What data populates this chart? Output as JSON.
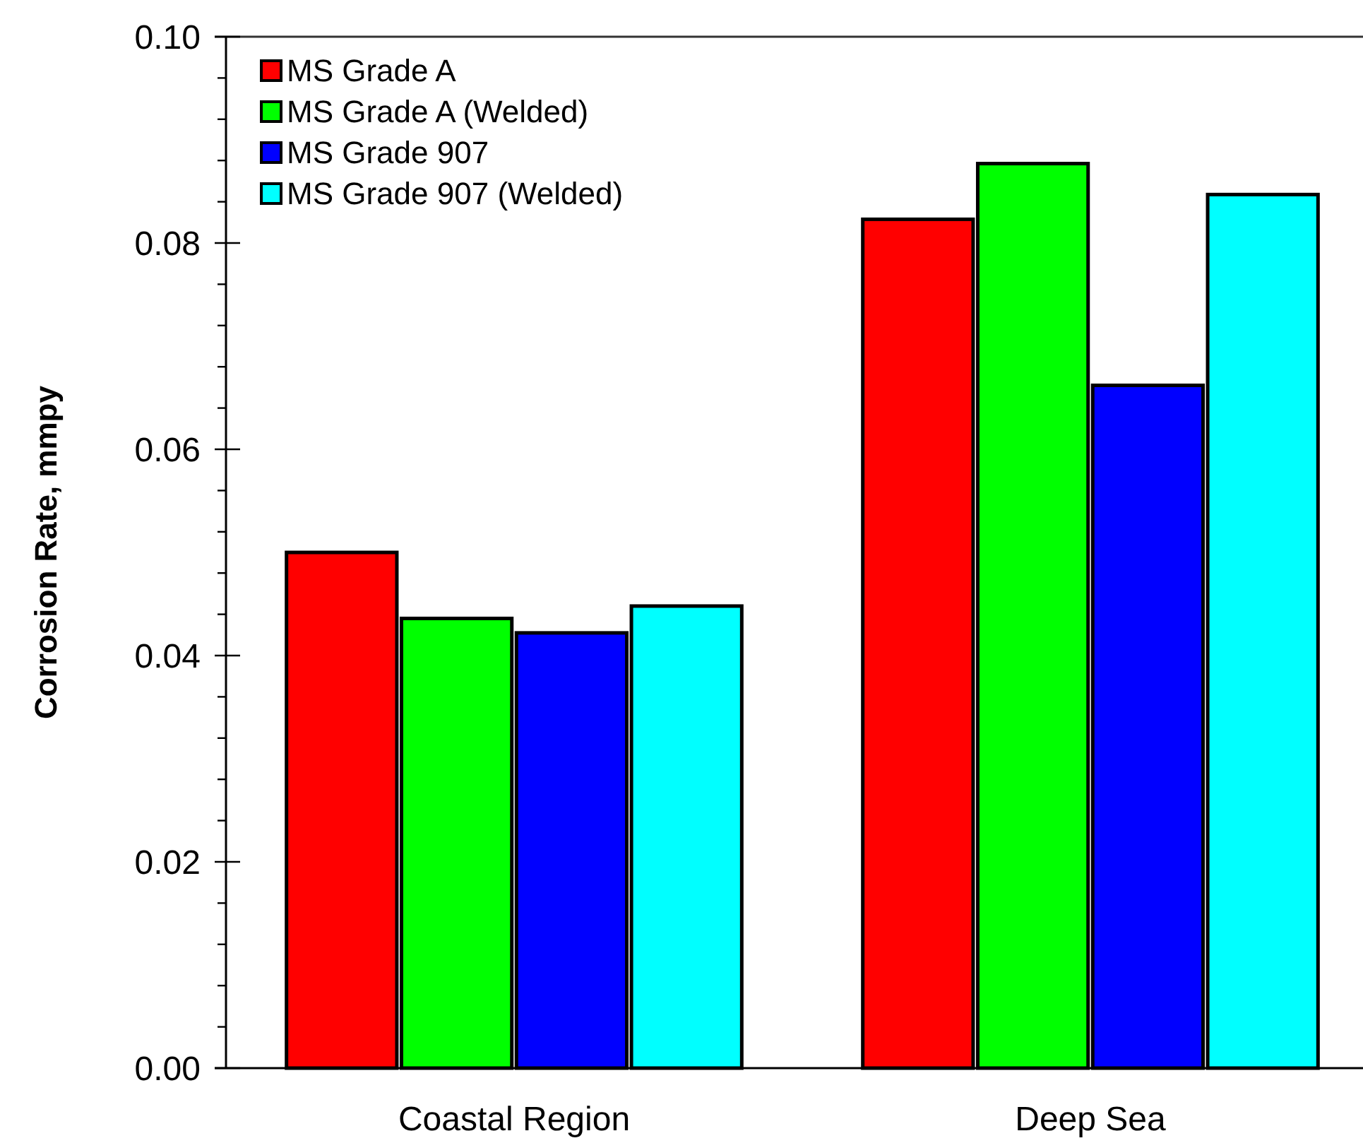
{
  "chart_data": {
    "type": "bar",
    "ylabel": "Corrosion Rate, mmpy",
    "categories": [
      "Coastal Region",
      "Deep Sea"
    ],
    "series": [
      {
        "name": "MS Grade A",
        "color": "#ff0000",
        "values": [
          0.05,
          0.0823
        ]
      },
      {
        "name": "MS Grade A (Welded)",
        "color": "#00ff00",
        "values": [
          0.0436,
          0.0877
        ]
      },
      {
        "name": "MS Grade 907",
        "color": "#0000ff",
        "values": [
          0.0422,
          0.0662
        ]
      },
      {
        "name": "MS Grade 907 (Welded)",
        "color": "#00ffff",
        "values": [
          0.0448,
          0.0847
        ]
      }
    ],
    "ylim": [
      0,
      0.1
    ],
    "yticks": [
      "0.00",
      {
        "value": 0.004,
        "label": null
      },
      {
        "value": 0.008,
        "label": null
      },
      {
        "value": 0.012,
        "label": null
      },
      {
        "value": 0.016,
        "label": null
      },
      {
        "value": 0.02,
        "label": "0.02"
      },
      {
        "value": 0.024,
        "label": null
      },
      {
        "value": 0.028,
        "label": null
      },
      {
        "value": 0.032,
        "label": null
      },
      {
        "value": 0.036,
        "label": null
      },
      {
        "value": 0.04,
        "label": "0.04"
      },
      {
        "value": 0.044,
        "label": null
      },
      {
        "value": 0.048,
        "label": null
      },
      {
        "value": 0.052,
        "label": null
      },
      {
        "value": 0.056,
        "label": null
      },
      {
        "value": 0.06,
        "label": "0.06"
      },
      {
        "value": 0.064,
        "label": null
      },
      {
        "value": 0.068,
        "label": null
      },
      {
        "value": 0.072,
        "label": null
      },
      {
        "value": 0.076,
        "label": null
      },
      {
        "value": 0.08,
        "label": "0.08"
      },
      {
        "value": 0.084,
        "label": null
      },
      {
        "value": 0.088,
        "label": null
      },
      {
        "value": 0.092,
        "label": null
      },
      {
        "value": 0.096,
        "label": null
      },
      {
        "value": 0.1,
        "label": "0.10"
      }
    ],
    "legend": "top left"
  }
}
